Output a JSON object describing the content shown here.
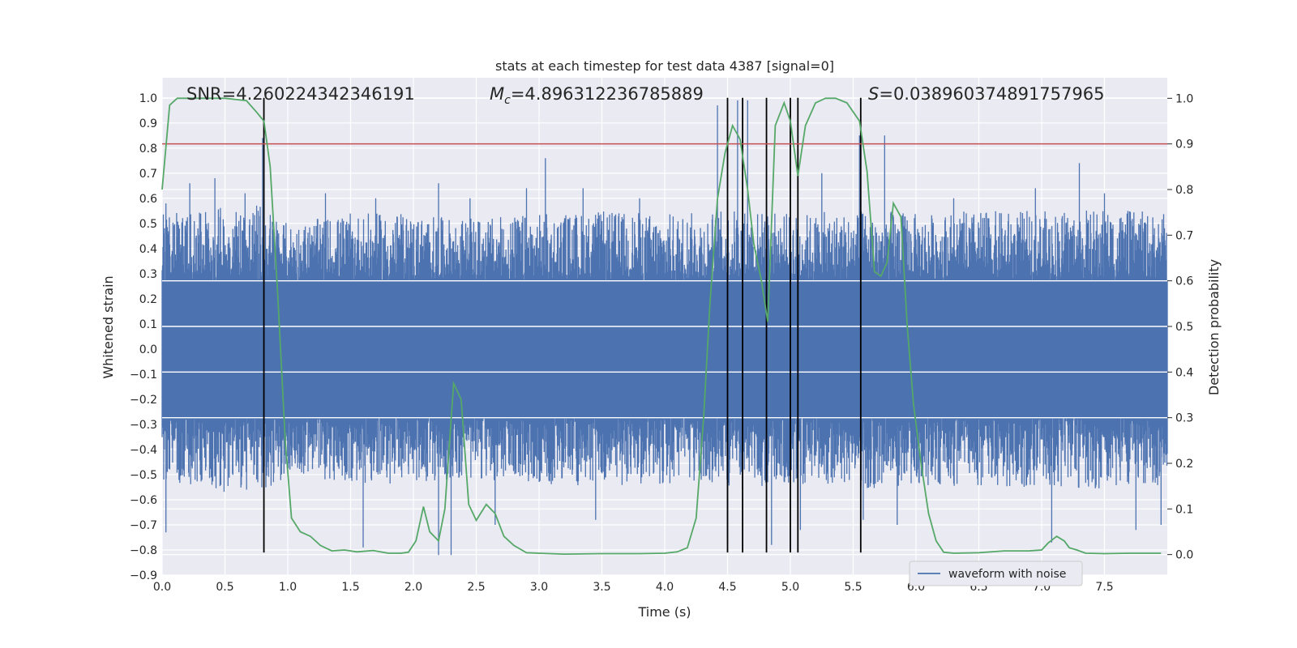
{
  "chart_data": {
    "type": "line",
    "title": "stats at each timestep for test data 4387 [signal=0]",
    "xlabel": "Time (s)",
    "ylabel": "Whitened strain",
    "y2label": "Detection probability",
    "xlim": [
      0.0,
      8.0
    ],
    "ylim": [
      -0.9,
      1.08
    ],
    "y2lim": [
      -0.045,
      1.045
    ],
    "xticks": [
      "0.0",
      "0.5",
      "1.0",
      "1.5",
      "2.0",
      "2.5",
      "3.0",
      "3.5",
      "4.0",
      "4.5",
      "5.0",
      "5.5",
      "6.0",
      "6.5",
      "7.0",
      "7.5"
    ],
    "yticks": [
      "1.0",
      "0.9",
      "0.8",
      "0.7",
      "0.6",
      "0.5",
      "0.4",
      "0.3",
      "0.2",
      "0.1",
      "0.0",
      "−0.1",
      "−0.2",
      "−0.3",
      "−0.4",
      "−0.5",
      "−0.6",
      "−0.7",
      "−0.8",
      "−0.9"
    ],
    "y2ticks": [
      "1.0",
      "0.9",
      "0.8",
      "0.7",
      "0.6",
      "0.5",
      "0.4",
      "0.3",
      "0.2",
      "0.1",
      "0.0"
    ],
    "threshold": 0.9,
    "vlines": [
      0.81,
      4.5,
      4.62,
      4.81,
      5.0,
      5.06,
      5.56
    ],
    "vline_y_range": [
      -0.81,
      1.0
    ],
    "annotations": {
      "snr": "SNR=4.260224342346191",
      "mc_symbol": "M",
      "mc_sub": "c",
      "mc_value": "=4.896312236785889",
      "s_symbol": "S",
      "s_value": "=0.038960374891757965"
    },
    "legend": {
      "label": "waveform with noise",
      "position": "bottom-right"
    },
    "series": [
      {
        "name": "waveform with noise",
        "color": "#4c72b0",
        "envelope": {
          "x": [
            0.0,
            0.5,
            0.8,
            1.0,
            1.5,
            2.0,
            2.3,
            2.5,
            3.0,
            3.5,
            4.0,
            4.4,
            4.6,
            5.0,
            5.5,
            5.7,
            6.0,
            6.5,
            7.0,
            7.5,
            8.0
          ],
          "pos": [
            0.42,
            0.45,
            0.46,
            0.38,
            0.42,
            0.42,
            0.4,
            0.4,
            0.42,
            0.43,
            0.42,
            0.43,
            0.44,
            0.42,
            0.43,
            0.44,
            0.42,
            0.43,
            0.43,
            0.44,
            0.42
          ],
          "neg": [
            -0.42,
            -0.45,
            -0.46,
            -0.38,
            -0.42,
            -0.42,
            -0.4,
            -0.4,
            -0.42,
            -0.43,
            -0.42,
            -0.43,
            -0.44,
            -0.42,
            -0.43,
            -0.44,
            -0.42,
            -0.43,
            -0.43,
            -0.44,
            -0.42
          ]
        },
        "spikes_up": [
          [
            0.03,
            0.58
          ],
          [
            0.22,
            0.66
          ],
          [
            0.42,
            0.68
          ],
          [
            0.66,
            0.62
          ],
          [
            0.8,
            0.84
          ],
          [
            1.3,
            0.62
          ],
          [
            1.7,
            0.6
          ],
          [
            2.2,
            0.66
          ],
          [
            2.45,
            0.6
          ],
          [
            2.9,
            0.64
          ],
          [
            3.05,
            0.76
          ],
          [
            3.35,
            0.64
          ],
          [
            3.8,
            0.6
          ],
          [
            4.42,
            0.97
          ],
          [
            4.58,
            0.99
          ],
          [
            4.66,
            0.99
          ],
          [
            5.25,
            0.7
          ],
          [
            5.55,
            0.85
          ],
          [
            5.75,
            0.85
          ],
          [
            6.3,
            0.6
          ],
          [
            6.95,
            0.64
          ],
          [
            7.3,
            0.74
          ],
          [
            7.5,
            0.62
          ]
        ],
        "spikes_down": [
          [
            0.03,
            -0.73
          ],
          [
            1.6,
            -0.79
          ],
          [
            2.2,
            -0.82
          ],
          [
            2.3,
            -0.82
          ],
          [
            2.65,
            -0.7
          ],
          [
            3.45,
            -0.68
          ],
          [
            4.5,
            -0.75
          ],
          [
            4.85,
            -0.78
          ],
          [
            5.08,
            -0.72
          ],
          [
            5.58,
            -0.68
          ],
          [
            5.85,
            -0.7
          ],
          [
            7.08,
            -0.77
          ],
          [
            7.75,
            -0.72
          ],
          [
            7.95,
            -0.7
          ]
        ]
      },
      {
        "name": "Detection probability",
        "color": "#55a868",
        "axis": "right",
        "x": [
          0.0,
          0.06,
          0.12,
          0.3,
          0.5,
          0.67,
          0.75,
          0.81,
          0.86,
          0.92,
          0.98,
          1.03,
          1.1,
          1.18,
          1.26,
          1.35,
          1.45,
          1.55,
          1.68,
          1.8,
          1.9,
          1.96,
          2.02,
          2.08,
          2.13,
          2.2,
          2.25,
          2.32,
          2.38,
          2.44,
          2.5,
          2.58,
          2.65,
          2.72,
          2.8,
          2.9,
          3.0,
          3.2,
          3.5,
          3.8,
          4.0,
          4.1,
          4.18,
          4.25,
          4.31,
          4.36,
          4.42,
          4.48,
          4.54,
          4.6,
          4.66,
          4.71,
          4.77,
          4.82,
          4.88,
          4.95,
          5.0,
          5.06,
          5.12,
          5.2,
          5.28,
          5.36,
          5.45,
          5.55,
          5.61,
          5.67,
          5.72,
          5.77,
          5.82,
          5.88,
          5.93,
          5.98,
          6.04,
          6.1,
          6.16,
          6.22,
          6.3,
          6.5,
          6.7,
          6.9,
          7.0,
          7.05,
          7.12,
          7.18,
          7.22,
          7.28,
          7.35,
          7.5,
          7.7,
          7.95
        ],
        "y": [
          0.8,
          0.985,
          1.0,
          1.0,
          1.0,
          0.995,
          0.97,
          0.95,
          0.85,
          0.57,
          0.25,
          0.08,
          0.05,
          0.04,
          0.02,
          0.008,
          0.01,
          0.006,
          0.009,
          0.003,
          0.003,
          0.005,
          0.03,
          0.105,
          0.05,
          0.03,
          0.1,
          0.375,
          0.34,
          0.11,
          0.075,
          0.11,
          0.09,
          0.04,
          0.02,
          0.004,
          0.003,
          0.001,
          0.002,
          0.002,
          0.003,
          0.006,
          0.015,
          0.08,
          0.3,
          0.55,
          0.78,
          0.88,
          0.94,
          0.91,
          0.8,
          0.68,
          0.6,
          0.51,
          0.94,
          0.99,
          0.95,
          0.83,
          0.94,
          0.99,
          1.0,
          1.0,
          0.99,
          0.95,
          0.84,
          0.62,
          0.61,
          0.64,
          0.77,
          0.74,
          0.5,
          0.33,
          0.2,
          0.09,
          0.03,
          0.005,
          0.003,
          0.004,
          0.008,
          0.008,
          0.01,
          0.025,
          0.04,
          0.03,
          0.015,
          0.01,
          0.003,
          0.002,
          0.003,
          0.003
        ]
      }
    ]
  }
}
